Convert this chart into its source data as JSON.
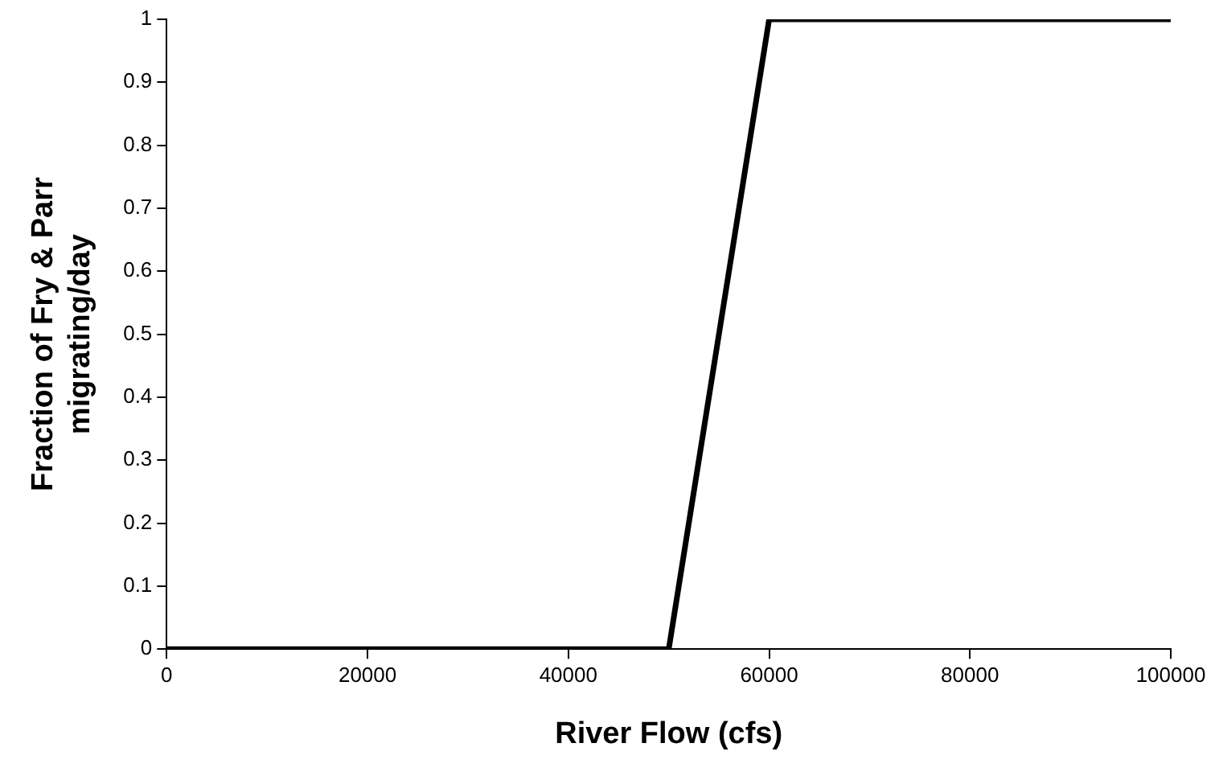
{
  "chart_data": {
    "type": "line",
    "xlabel": "River Flow (cfs)",
    "ylabel": "Fraction of Fry & Parr\nmigrating/day",
    "x": [
      0,
      50000,
      60000,
      100000
    ],
    "series": [
      {
        "color": "#000000",
        "values": [
          0,
          0,
          1,
          1
        ]
      }
    ],
    "xlim": [
      0,
      100000
    ],
    "xticks": [
      0,
      20000,
      40000,
      60000,
      80000,
      100000
    ],
    "ylim": [
      0,
      1
    ],
    "yticks": [
      0,
      0.1,
      0.2,
      0.3,
      0.4,
      0.5,
      0.6,
      0.7,
      0.8,
      0.9,
      1
    ],
    "grid": false,
    "legend": false,
    "marker": "none",
    "line_style": "solid"
  }
}
